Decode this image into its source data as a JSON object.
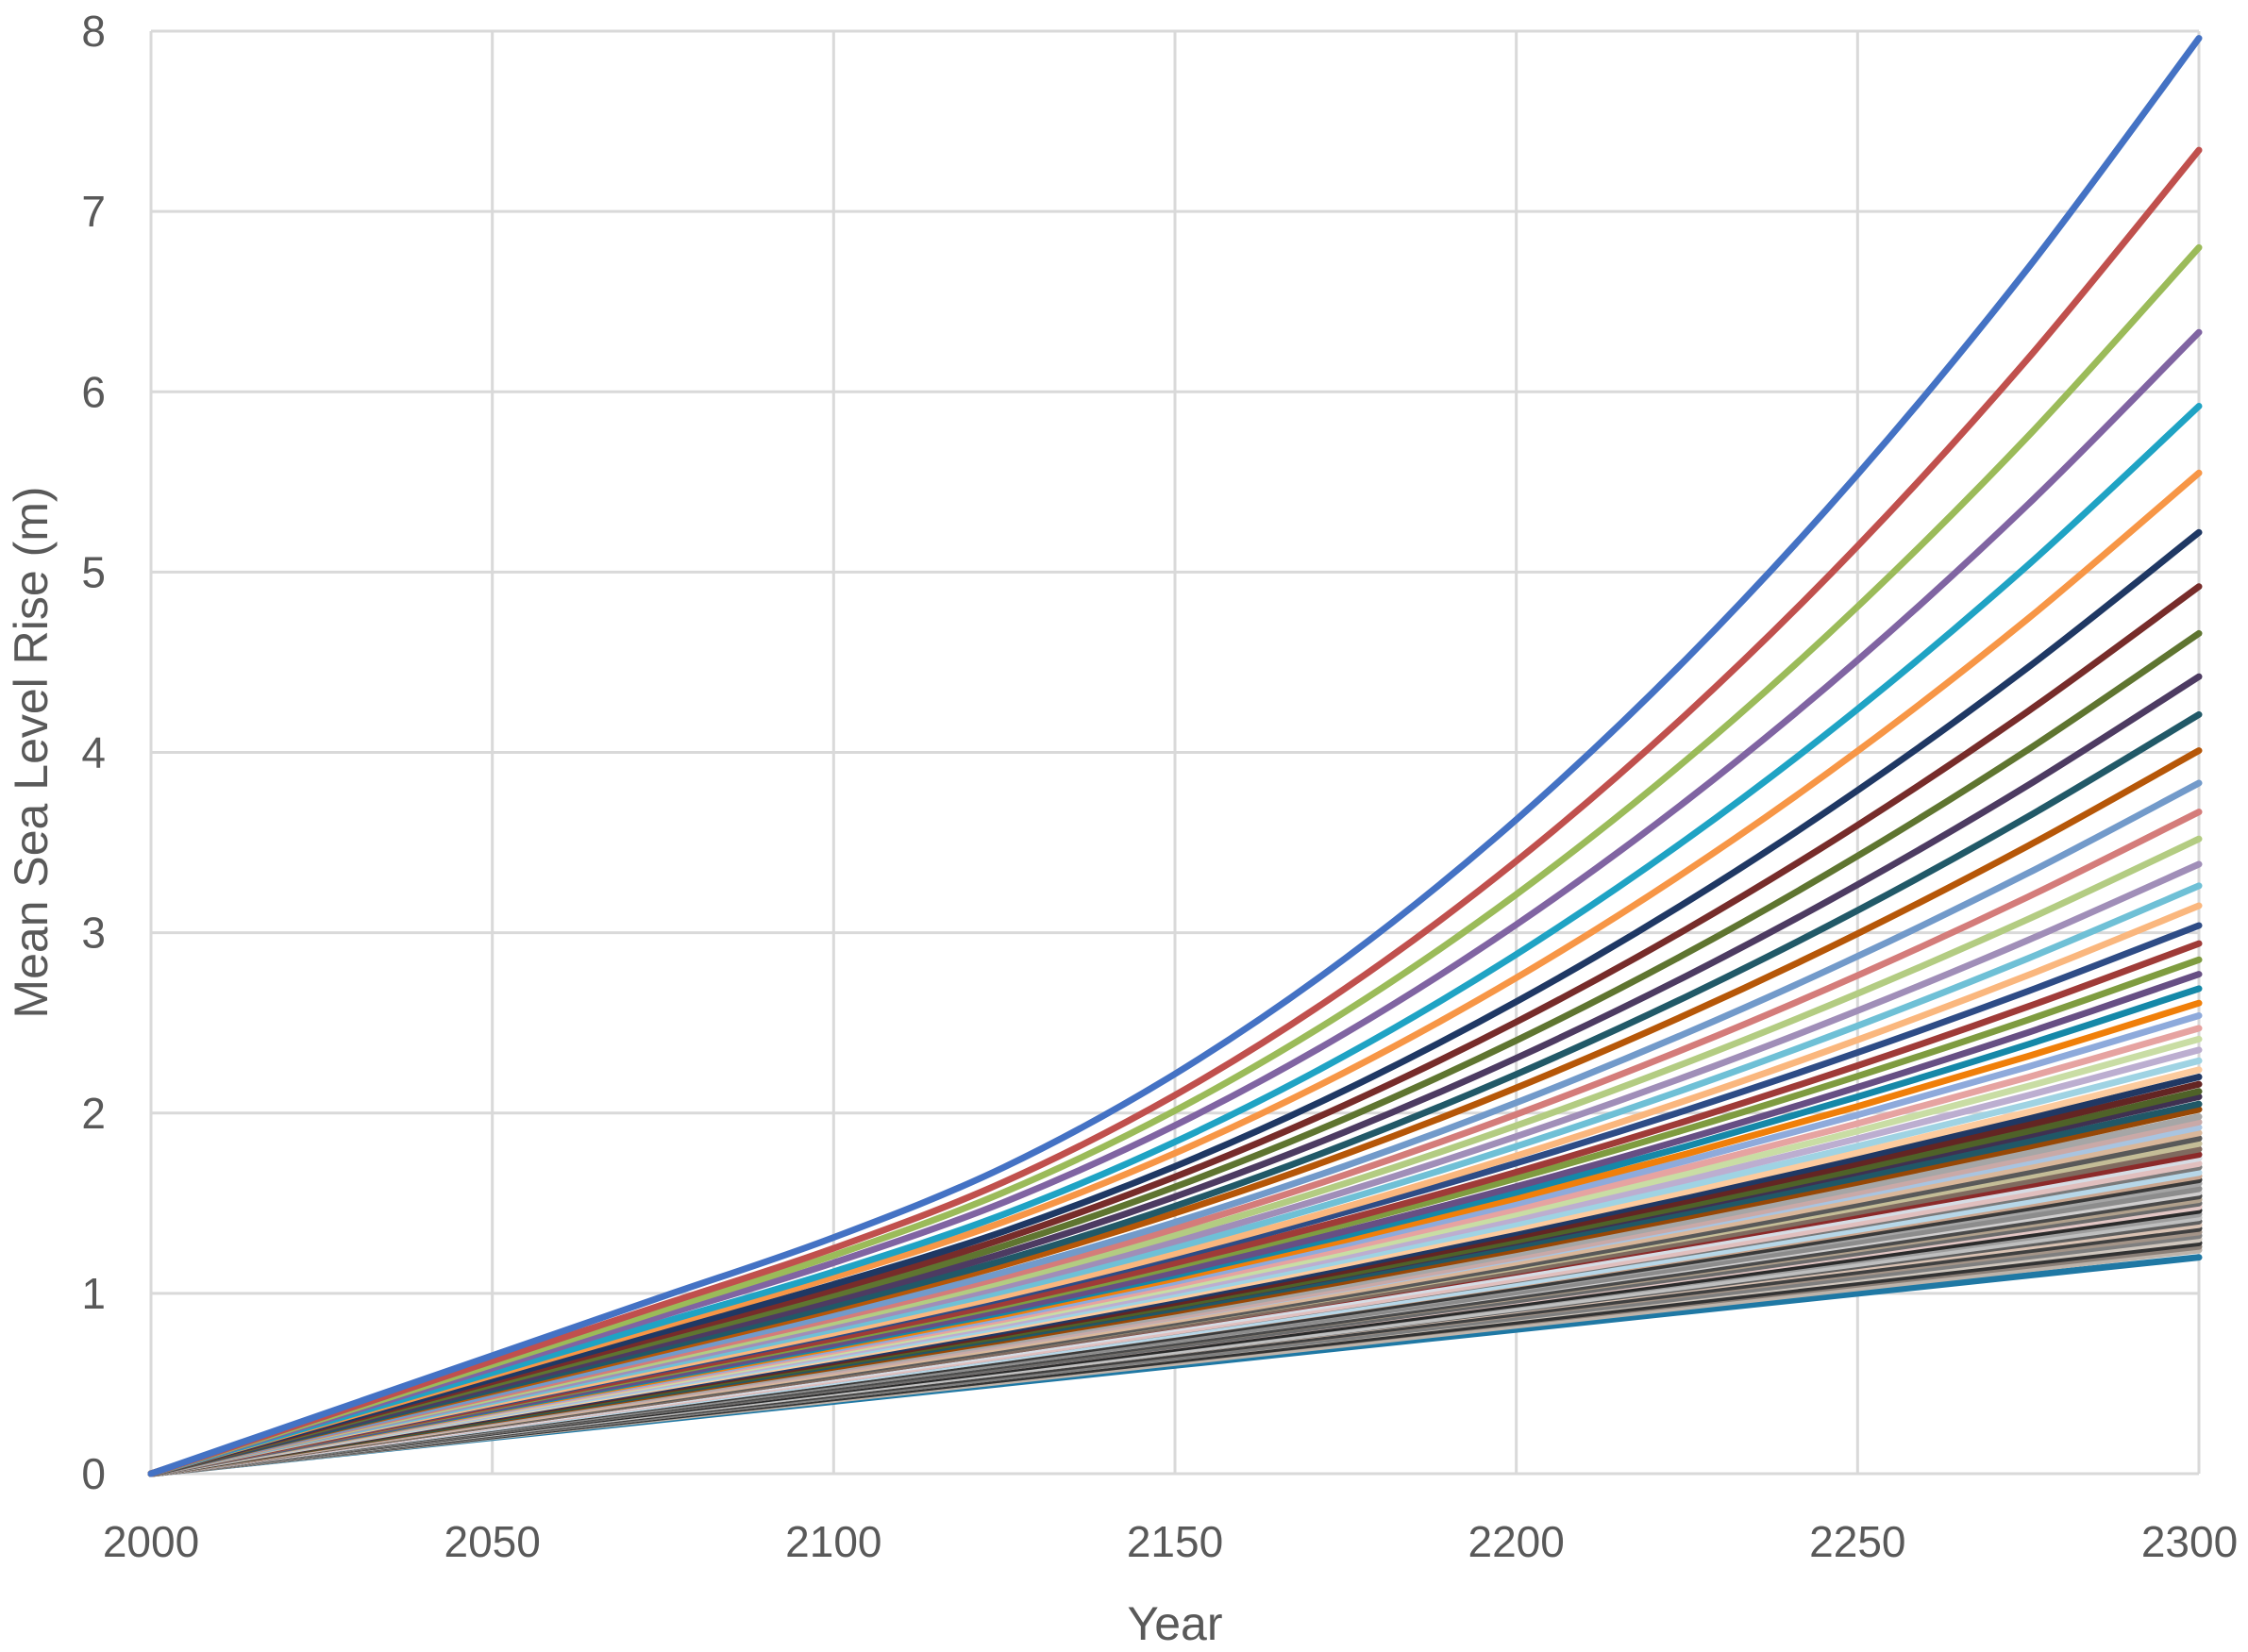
{
  "chart_data": {
    "type": "line",
    "title": "",
    "xlabel": "Year",
    "ylabel": "Mean Sea Level Rise (m)",
    "x": [
      2000,
      2025,
      2050,
      2075,
      2100,
      2125,
      2150,
      2175,
      2200,
      2225,
      2250,
      2275,
      2300
    ],
    "xlim": [
      2000,
      2300
    ],
    "ylim": [
      0,
      8
    ],
    "xticks": [
      "2000",
      "2050",
      "2100",
      "2150",
      "2200",
      "2250",
      "2300"
    ],
    "yticks": [
      "0",
      "1",
      "2",
      "3",
      "4",
      "5",
      "6",
      "7",
      "8"
    ],
    "grid": true,
    "legend": "none",
    "series_style": {
      "values_at": "linear to 2100 at value_2100, then convex growth to value_2300",
      "note": "numeric values listed below"
    },
    "series": [
      {
        "color": "#4472C4",
        "v2100": 1.31,
        "v2300": 7.96
      },
      {
        "color": "#C0504D",
        "v2100": 1.25,
        "v2300": 7.34
      },
      {
        "color": "#9BBB59",
        "v2100": 1.21,
        "v2300": 6.8
      },
      {
        "color": "#8064A2",
        "v2100": 1.17,
        "v2300": 6.33
      },
      {
        "color": "#1FA3C4",
        "v2100": 1.12,
        "v2300": 5.92
      },
      {
        "color": "#F79646",
        "v2100": 1.09,
        "v2300": 5.55
      },
      {
        "color": "#1F3864",
        "v2100": 1.05,
        "v2300": 5.22
      },
      {
        "color": "#772C2A",
        "v2100": 1.02,
        "v2300": 4.92
      },
      {
        "color": "#5F7530",
        "v2100": 0.99,
        "v2300": 4.66
      },
      {
        "color": "#4D3B62",
        "v2100": 0.96,
        "v2300": 4.42
      },
      {
        "color": "#215968",
        "v2100": 0.93,
        "v2300": 4.21
      },
      {
        "color": "#B65708",
        "v2100": 0.91,
        "v2300": 4.01
      },
      {
        "color": "#729ACA",
        "v2100": 0.88,
        "v2300": 3.83
      },
      {
        "color": "#D47C7A",
        "v2100": 0.86,
        "v2300": 3.67
      },
      {
        "color": "#B3CC82",
        "v2100": 0.84,
        "v2300": 3.52
      },
      {
        "color": "#A08EB8",
        "v2100": 0.82,
        "v2300": 3.38
      },
      {
        "color": "#6FC0D6",
        "v2100": 0.8,
        "v2300": 3.26
      },
      {
        "color": "#FAB77E",
        "v2100": 0.78,
        "v2300": 3.15
      },
      {
        "color": "#2E4C86",
        "v2100": 0.77,
        "v2300": 3.04
      },
      {
        "color": "#9F3B38",
        "v2100": 0.75,
        "v2300": 2.94
      },
      {
        "color": "#7F9C40",
        "v2100": 0.74,
        "v2300": 2.85
      },
      {
        "color": "#674F84",
        "v2100": 0.72,
        "v2300": 2.77
      },
      {
        "color": "#1588A8",
        "v2100": 0.71,
        "v2300": 2.69
      },
      {
        "color": "#F07F09",
        "v2100": 0.7,
        "v2300": 2.61
      },
      {
        "color": "#8EAADB",
        "v2100": 0.69,
        "v2300": 2.54
      },
      {
        "color": "#E6A3A1",
        "v2100": 0.68,
        "v2300": 2.47
      },
      {
        "color": "#C9DDA4",
        "v2100": 0.67,
        "v2300": 2.41
      },
      {
        "color": "#BCAED0",
        "v2100": 0.66,
        "v2300": 2.35
      },
      {
        "color": "#9FD3E3",
        "v2100": 0.65,
        "v2300": 2.29
      },
      {
        "color": "#FCCB9E",
        "v2100": 0.64,
        "v2300": 2.24
      },
      {
        "color": "#203864",
        "v2100": 0.63,
        "v2300": 2.2
      },
      {
        "color": "#632523",
        "v2100": 0.62,
        "v2300": 2.16
      },
      {
        "color": "#4F6228",
        "v2100": 0.61,
        "v2300": 2.12
      },
      {
        "color": "#3F3151",
        "v2100": 0.61,
        "v2300": 2.09
      },
      {
        "color": "#205867",
        "v2100": 0.6,
        "v2300": 2.05
      },
      {
        "color": "#974806",
        "v2100": 0.59,
        "v2300": 2.02
      },
      {
        "color": "#A6A6A6",
        "v2100": 0.58,
        "v2300": 1.98
      },
      {
        "color": "#C9A9A7",
        "v2100": 0.57,
        "v2300": 1.95
      },
      {
        "color": "#A9C4E0",
        "v2100": 0.57,
        "v2300": 1.92
      },
      {
        "color": "#D9B79A",
        "v2100": 0.56,
        "v2300": 1.89
      },
      {
        "color": "#595959",
        "v2100": 0.55,
        "v2300": 1.86
      },
      {
        "color": "#C4BD97",
        "v2100": 0.55,
        "v2300": 1.83
      },
      {
        "color": "#7F6A5F",
        "v2100": 0.54,
        "v2300": 1.8
      },
      {
        "color": "#8C2A2A",
        "v2100": 0.54,
        "v2300": 1.77
      },
      {
        "color": "#D6DCE4",
        "v2100": 0.53,
        "v2300": 1.75
      },
      {
        "color": "#E0BFBE",
        "v2100": 0.52,
        "v2300": 1.72
      },
      {
        "color": "#7A7A7A",
        "v2100": 0.52,
        "v2300": 1.7
      },
      {
        "color": "#B7D7E8",
        "v2100": 0.51,
        "v2300": 1.67
      },
      {
        "color": "#C8A58F",
        "v2100": 0.51,
        "v2300": 1.65
      },
      {
        "color": "#3A3A3A",
        "v2100": 0.5,
        "v2300": 1.63
      },
      {
        "color": "#A5A5A5",
        "v2100": 0.5,
        "v2300": 1.61
      },
      {
        "color": "#8C8C8C",
        "v2100": 0.49,
        "v2300": 1.58
      },
      {
        "color": "#D0CECE",
        "v2100": 0.49,
        "v2300": 1.56
      },
      {
        "color": "#4A4A4A",
        "v2100": 0.48,
        "v2300": 1.54
      },
      {
        "color": "#B0A08C",
        "v2100": 0.48,
        "v2300": 1.52
      },
      {
        "color": "#6B6B6B",
        "v2100": 0.47,
        "v2300": 1.5
      },
      {
        "color": "#E2C6C4",
        "v2100": 0.47,
        "v2300": 1.48
      },
      {
        "color": "#2B2B2B",
        "v2100": 0.46,
        "v2300": 1.46
      },
      {
        "color": "#9E9E9E",
        "v2100": 0.46,
        "v2300": 1.44
      },
      {
        "color": "#BFBFBF",
        "v2100": 0.45,
        "v2300": 1.42
      },
      {
        "color": "#5E5E5E",
        "v2100": 0.45,
        "v2300": 1.4
      },
      {
        "color": "#D9C2B3",
        "v2100": 0.45,
        "v2300": 1.38
      },
      {
        "color": "#404040",
        "v2100": 0.44,
        "v2300": 1.36
      },
      {
        "color": "#A39488",
        "v2100": 0.44,
        "v2300": 1.34
      },
      {
        "color": "#7F7F7F",
        "v2100": 0.43,
        "v2300": 1.32
      },
      {
        "color": "#CFC6BD",
        "v2100": 0.43,
        "v2300": 1.3
      },
      {
        "color": "#333333",
        "v2100": 0.42,
        "v2300": 1.28
      },
      {
        "color": "#8A7F77",
        "v2100": 0.42,
        "v2300": 1.26
      },
      {
        "color": "#BDB3AA",
        "v2100": 0.41,
        "v2300": 1.24
      },
      {
        "color": "#1F78A4",
        "v2100": 0.4,
        "v2300": 1.2
      }
    ]
  }
}
